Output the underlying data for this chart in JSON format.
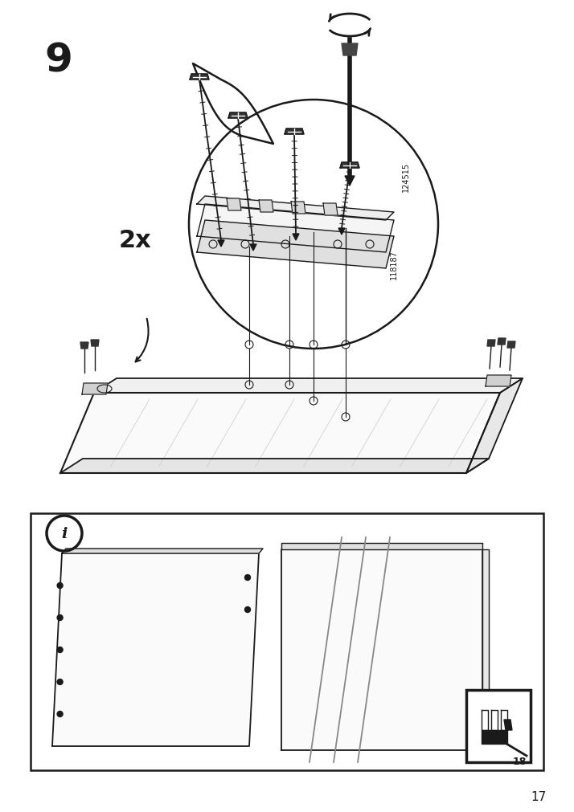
{
  "page_number": "17",
  "step_number": "9",
  "background_color": "#ffffff",
  "line_color": "#1a1a1a",
  "text_color": "#1a1a1a",
  "part_number_1": "124515",
  "part_number_2": "118187",
  "multiplier": "2x",
  "info_box_page": "18",
  "fig_width": 7.14,
  "fig_height": 10.12,
  "dpi": 100
}
